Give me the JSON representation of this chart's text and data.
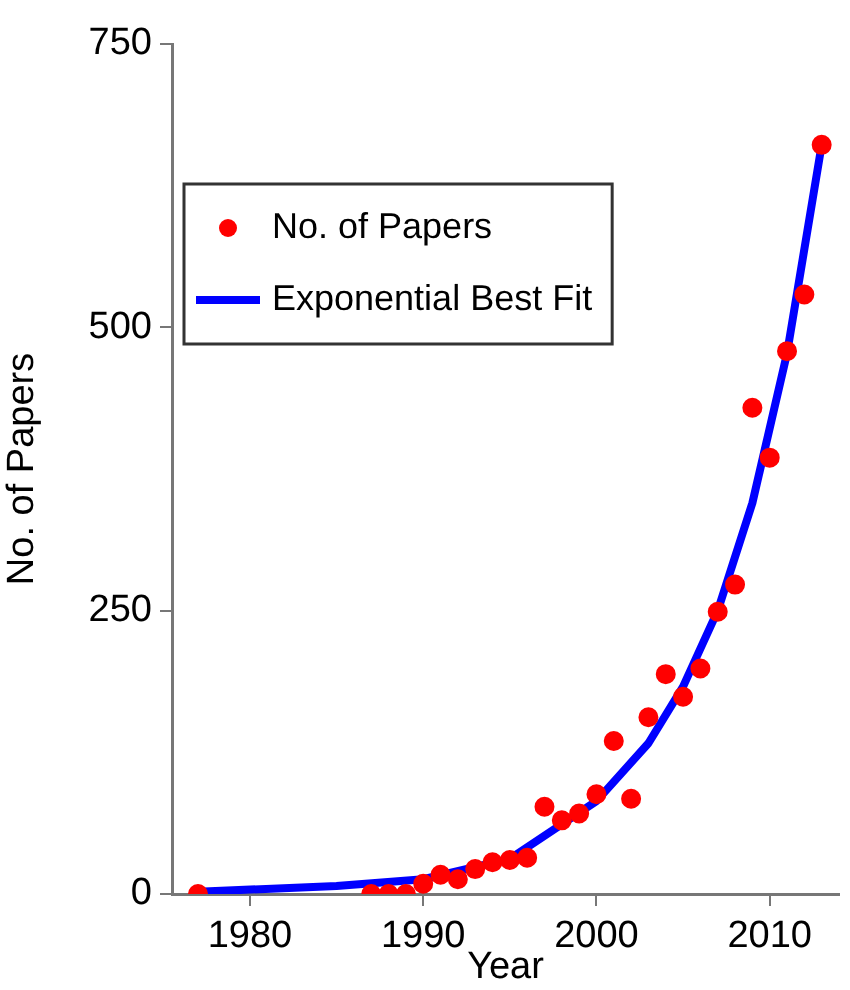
{
  "chart_data": {
    "type": "scatter",
    "xlabel": "Year",
    "ylabel": "No. of Papers",
    "xlim": [
      1975.5,
      2014
    ],
    "xticks": [
      1980,
      1990,
      2000,
      2010
    ],
    "ylim": [
      0,
      750
    ],
    "yticks": [
      0,
      250,
      500,
      750
    ],
    "grid": false,
    "legend": "top left",
    "series": [
      {
        "name": "No. of Papers",
        "marker": "circle",
        "color": "#ff0000",
        "x": [
          1977,
          1987,
          1988,
          1989,
          1990,
          1991,
          1992,
          1993,
          1994,
          1995,
          1996,
          1997,
          1998,
          1999,
          2000,
          2001,
          2002,
          2003,
          2004,
          2005,
          2006,
          2007,
          2008,
          2009,
          2010,
          2011,
          2012,
          2013
        ],
        "values": [
          0,
          0,
          0,
          0,
          9,
          17,
          13,
          22,
          28,
          30,
          32,
          77,
          65,
          71,
          88,
          135,
          84,
          156,
          194,
          174,
          199,
          249,
          273,
          429,
          385,
          479,
          529,
          661
        ]
      },
      {
        "name": "Exponential Best Fit",
        "type": "line",
        "marker": "none",
        "line_style": "solid",
        "color": "#0000ff",
        "x": [
          1977,
          1985,
          1990,
          1995,
          2000,
          2003,
          2005,
          2007,
          2009,
          2011,
          2013
        ],
        "values": [
          2,
          7,
          13,
          31,
          82,
          133,
          183,
          250,
          345,
          477,
          661
        ]
      }
    ]
  }
}
